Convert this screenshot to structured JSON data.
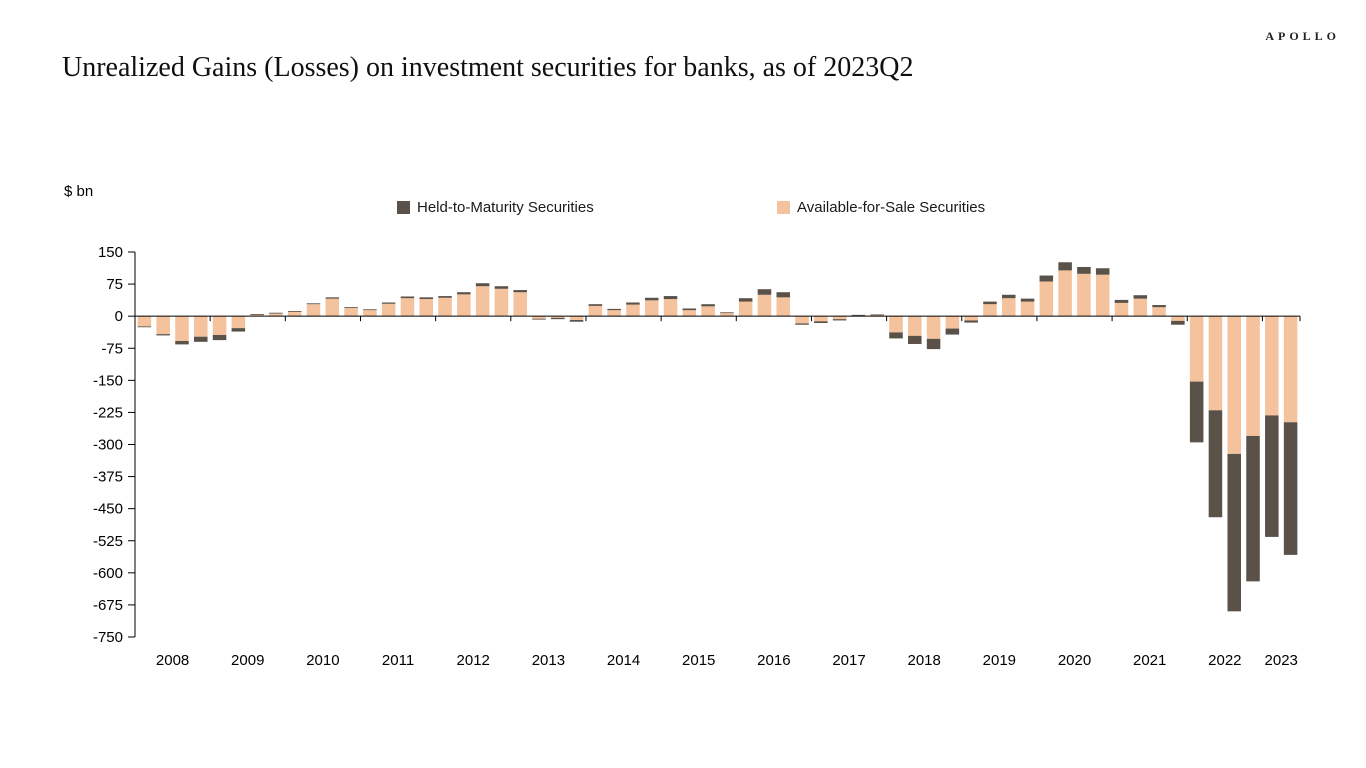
{
  "header": {
    "brand": "APOLLO",
    "title": "Unrealized Gains (Losses) on investment securities for banks, as of 2023Q2"
  },
  "chart_data": {
    "type": "bar",
    "stacked": true,
    "axis_unit_label": "$ bn",
    "ylim": [
      -750,
      150
    ],
    "y_ticks": [
      150,
      75,
      0,
      -75,
      -150,
      -225,
      -300,
      -375,
      -450,
      -525,
      -600,
      -675,
      -750
    ],
    "grid": false,
    "legend_position": "top-center",
    "x_year_labels": [
      "2008",
      "2009",
      "2010",
      "2011",
      "2012",
      "2013",
      "2014",
      "2015",
      "2016",
      "2017",
      "2018",
      "2019",
      "2020",
      "2021",
      "2022",
      "2023"
    ],
    "quarters": [
      "2008Q1",
      "2008Q2",
      "2008Q3",
      "2008Q4",
      "2009Q1",
      "2009Q2",
      "2009Q3",
      "2009Q4",
      "2010Q1",
      "2010Q2",
      "2010Q3",
      "2010Q4",
      "2011Q1",
      "2011Q2",
      "2011Q3",
      "2011Q4",
      "2012Q1",
      "2012Q2",
      "2012Q3",
      "2012Q4",
      "2013Q1",
      "2013Q2",
      "2013Q3",
      "2013Q4",
      "2014Q1",
      "2014Q2",
      "2014Q3",
      "2014Q4",
      "2015Q1",
      "2015Q2",
      "2015Q3",
      "2015Q4",
      "2016Q1",
      "2016Q2",
      "2016Q3",
      "2016Q4",
      "2017Q1",
      "2017Q2",
      "2017Q3",
      "2017Q4",
      "2018Q1",
      "2018Q2",
      "2018Q3",
      "2018Q4",
      "2019Q1",
      "2019Q2",
      "2019Q3",
      "2019Q4",
      "2020Q1",
      "2020Q2",
      "2020Q3",
      "2020Q4",
      "2021Q1",
      "2021Q2",
      "2021Q3",
      "2021Q4",
      "2022Q1",
      "2022Q2",
      "2022Q3",
      "2022Q4",
      "2023Q1",
      "2023Q2"
    ],
    "series": [
      {
        "name": "Held-to-Maturity Securities",
        "color": "#5a5249",
        "stack_order": 2,
        "values": [
          -1,
          -3,
          -8,
          -12,
          -12,
          -8,
          1,
          1,
          1,
          2,
          3,
          2,
          2,
          3,
          4,
          4,
          4,
          5,
          7,
          6,
          5,
          -2,
          -3,
          -4,
          4,
          3,
          5,
          6,
          7,
          4,
          5,
          2,
          8,
          13,
          12,
          -3,
          -4,
          -3,
          1,
          1,
          -14,
          -19,
          -24,
          -14,
          -5,
          6,
          8,
          7,
          14,
          19,
          16,
          15,
          7,
          8,
          5,
          -9,
          -142,
          -250,
          -368,
          -340,
          -284,
          -310
        ]
      },
      {
        "name": "Available-for-Sale Securities",
        "color": "#f4c29c",
        "stack_order": 1,
        "values": [
          -24,
          -42,
          -58,
          -48,
          -44,
          -28,
          4,
          7,
          11,
          28,
          41,
          19,
          14,
          29,
          42,
          40,
          43,
          51,
          70,
          64,
          56,
          -6,
          -4,
          -9,
          24,
          14,
          27,
          37,
          40,
          14,
          23,
          7,
          34,
          50,
          44,
          -17,
          -12,
          -7,
          2,
          3,
          -38,
          -46,
          -53,
          -29,
          -10,
          28,
          42,
          34,
          81,
          107,
          99,
          97,
          31,
          41,
          21,
          -11,
          -153,
          -220,
          -322,
          -280,
          -232,
          -248
        ]
      }
    ]
  }
}
